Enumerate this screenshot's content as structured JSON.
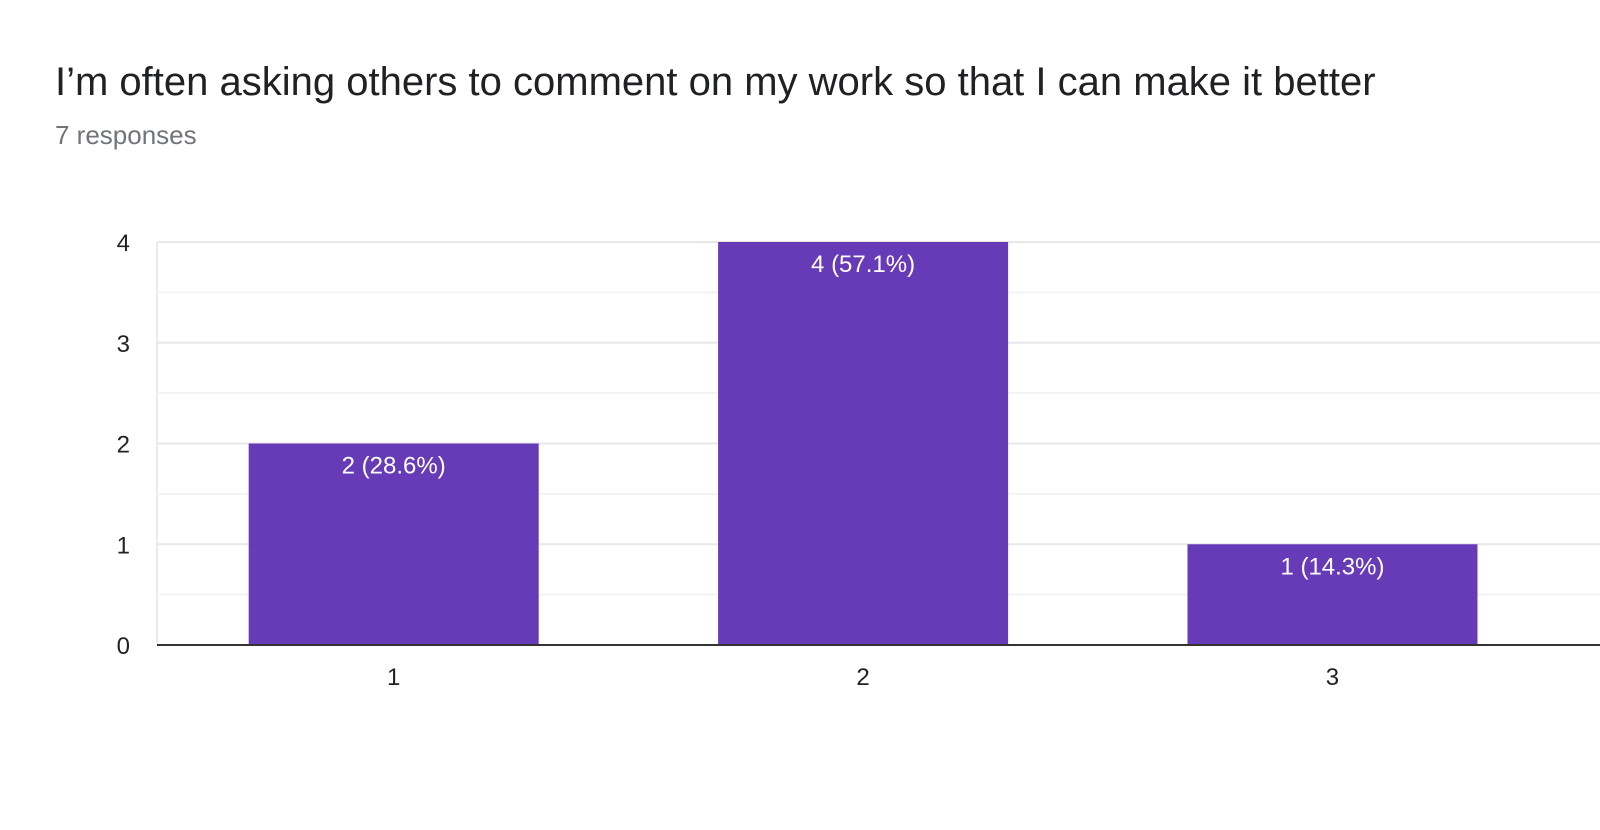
{
  "header": {
    "title": "I’m often asking others to comment on my work so that I can make it better",
    "subtitle": "7 responses"
  },
  "chart_data": {
    "type": "bar",
    "title": "I’m often asking others to comment on my work so that I can make it better",
    "subtitle": "7 responses",
    "categories": [
      "1",
      "2",
      "3"
    ],
    "values": [
      2,
      4,
      1
    ],
    "data_labels": [
      "2 (28.6%)",
      "4 (57.1%)",
      "1 (14.3%)"
    ],
    "xlabel": "",
    "ylabel": "",
    "ylim": [
      0,
      4
    ],
    "yticks": [
      "0",
      "1",
      "2",
      "3",
      "4"
    ],
    "grid": true,
    "bar_color": "#673ab7"
  }
}
